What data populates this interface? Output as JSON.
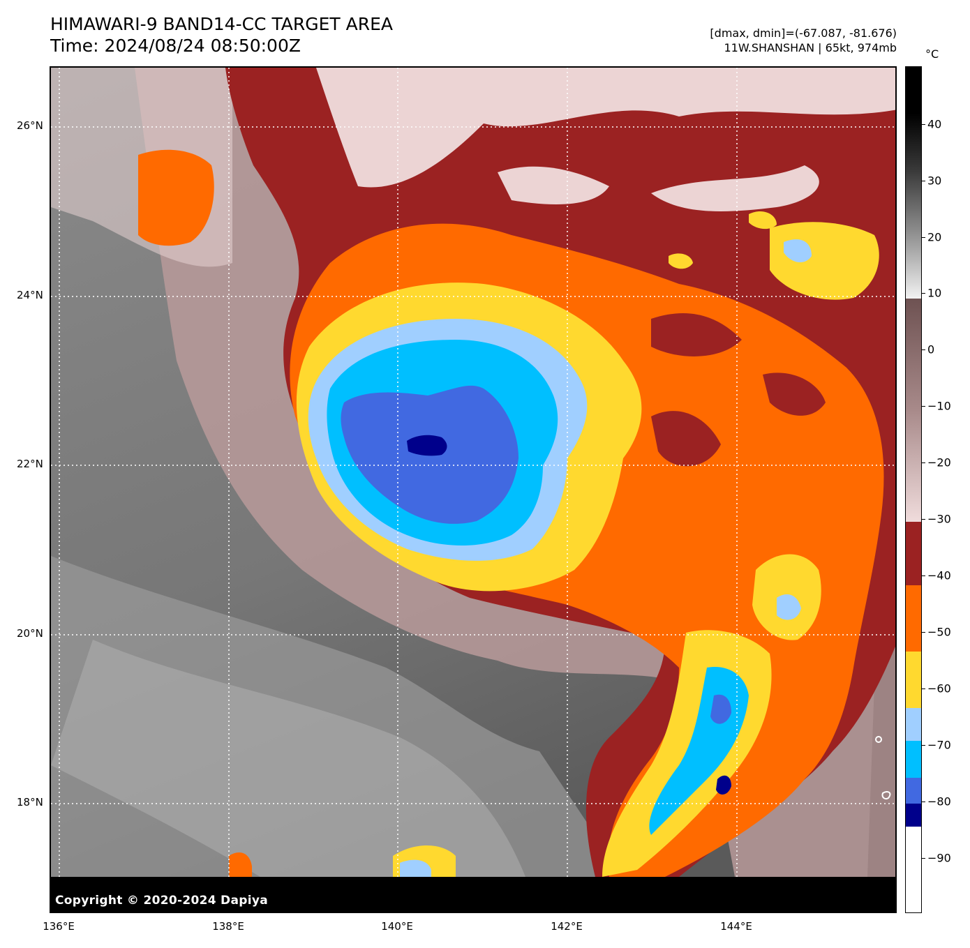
{
  "header": {
    "title_line1": "HIMAWARI-9 BAND14-CC TARGET AREA",
    "title_line2": "Time: 2024/08/24 08:50:00Z",
    "stats_line1": "[dmax, dmin]=(-67.087, -81.676)",
    "stats_line2": "11W.SHANSHAN | 65kt, 974mb"
  },
  "map": {
    "lat_labels": [
      "26°N",
      "24°N",
      "22°N",
      "20°N",
      "18°N"
    ],
    "lon_labels": [
      "136°E",
      "138°E",
      "140°E",
      "142°E",
      "144°E"
    ],
    "copyright": "Copyright © 2020-2024 Dapiya"
  },
  "colorbar": {
    "unit": "°C",
    "tick_labels": [
      "40",
      "30",
      "20",
      "10",
      "0",
      "−10",
      "−20",
      "−30",
      "−40",
      "−50",
      "−60",
      "−70",
      "−80",
      "−90"
    ],
    "colors": {
      "lt_-80": "#00008b",
      "-80_-75": "#4169e1",
      "-75_-70": "#00bfff",
      "-70_-65": "#a0cfff",
      "-65_-57": "#ffd92f",
      "-57_-45": "#ff6a00",
      "-45_-33": "#9b2222",
      "warm_gray_top": "#000000"
    }
  }
}
